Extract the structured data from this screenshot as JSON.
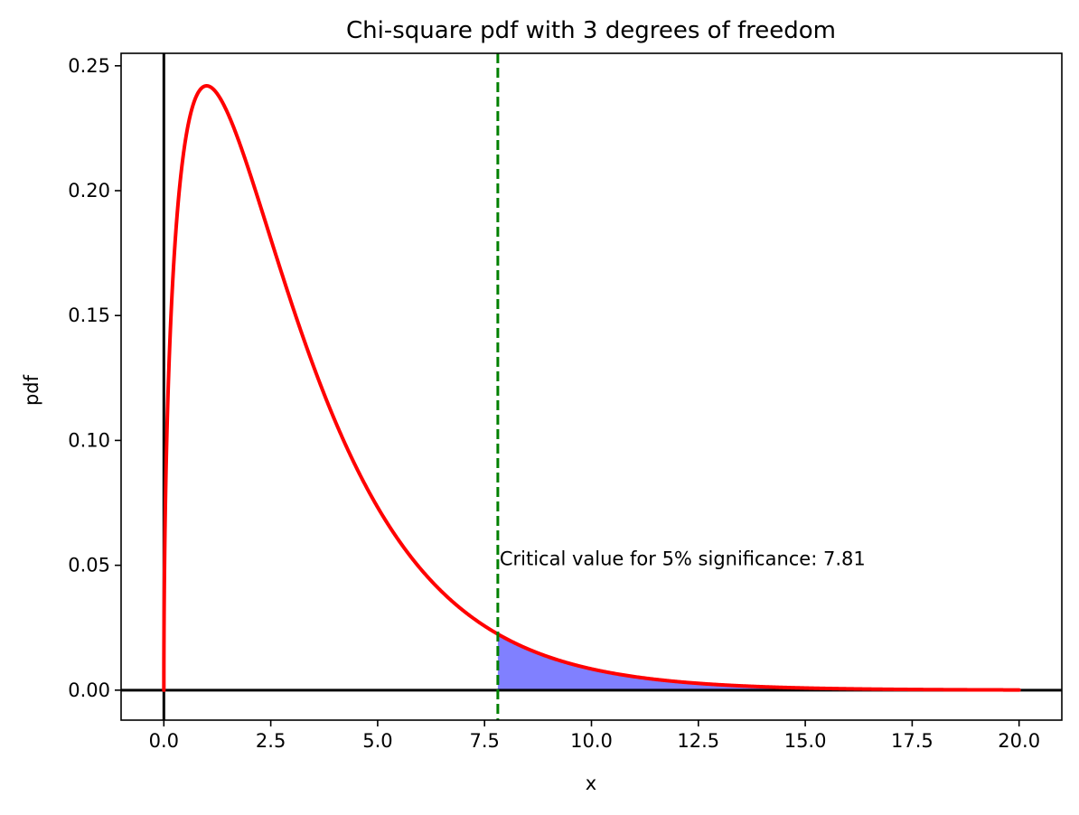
{
  "chart_data": {
    "type": "line",
    "title": "Chi-square pdf with 3 degrees of freedom",
    "xlabel": "x",
    "ylabel": "pdf",
    "xlim": [
      -1.0,
      21.0
    ],
    "ylim": [
      -0.012,
      0.255
    ],
    "x_ticks": [
      0.0,
      2.5,
      5.0,
      7.5,
      10.0,
      12.5,
      15.0,
      17.5,
      20.0
    ],
    "x_tick_labels": [
      "0.0",
      "2.5",
      "5.0",
      "7.5",
      "10.0",
      "12.5",
      "15.0",
      "17.5",
      "20.0"
    ],
    "y_ticks": [
      0.0,
      0.05,
      0.1,
      0.15,
      0.2,
      0.25
    ],
    "y_tick_labels": [
      "0.00",
      "0.05",
      "0.10",
      "0.15",
      "0.20",
      "0.25"
    ],
    "grid": false,
    "series": [
      {
        "color": "#ff0000",
        "degrees_of_freedom": 3,
        "x_range": [
          0,
          20
        ],
        "x": [
          0,
          0.01,
          0.05,
          0.1,
          0.2,
          0.3,
          0.5,
          0.7,
          1.0,
          1.25,
          1.5,
          2.0,
          2.5,
          3.0,
          3.5,
          4.0,
          4.5,
          5.0,
          5.5,
          6.0,
          6.5,
          7.0,
          7.5,
          7.81,
          8.0,
          8.5,
          9.0,
          10.0,
          11.0,
          12.0,
          13.0,
          14.0,
          15.0,
          16.0,
          17.0,
          18.0,
          19.0,
          20.0
        ],
        "y": [
          0.0,
          0.0397,
          0.0871,
          0.12,
          0.1614,
          0.1881,
          0.2197,
          0.2353,
          0.242,
          0.2391,
          0.2313,
          0.2076,
          0.1799,
          0.1542,
          0.1295,
          0.108,
          0.0897,
          0.0732,
          0.06,
          0.0487,
          0.0395,
          0.0318,
          0.0256,
          0.0223,
          0.0206,
          0.0166,
          0.0133,
          0.0085,
          0.0054,
          0.0034,
          0.0022,
          0.0014,
          0.0009,
          0.0005,
          0.0003,
          0.0002,
          0.0001,
          0.0001
        ]
      }
    ],
    "critical_value": 7.81,
    "critical_line_color": "#008000",
    "shaded_region": {
      "x_from": 7.81,
      "x_to": 20.0,
      "color": "#8080ff"
    },
    "reference_lines": {
      "horizontal_y": 0,
      "vertical_x": 0,
      "color": "#000000"
    },
    "annotation": {
      "text": "Critical value for 5% significance: 7.81",
      "x": 7.81,
      "y": 0.05
    }
  }
}
